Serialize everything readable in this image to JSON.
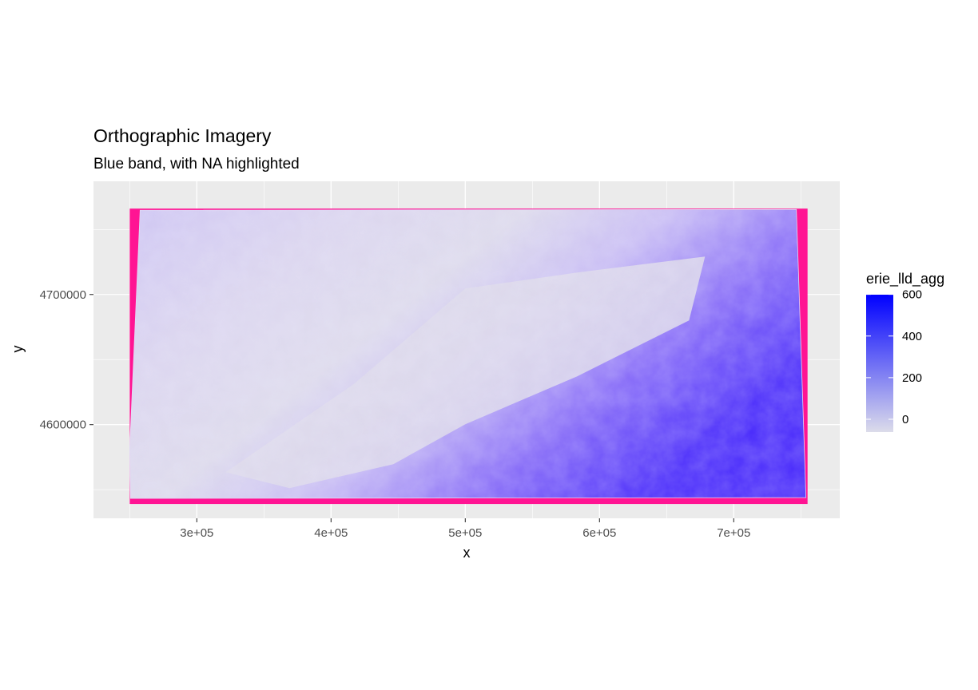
{
  "chart_data": {
    "type": "heatmap",
    "title": "Orthographic Imagery",
    "subtitle": "Blue band, with NA highlighted",
    "xlabel": "x",
    "ylabel": "y",
    "xlim": [
      223000,
      779000
    ],
    "ylim": [
      4528000,
      4787000
    ],
    "x_ticks": [
      {
        "value": 300000,
        "label": "3e+05"
      },
      {
        "value": 400000,
        "label": "4e+05"
      },
      {
        "value": 500000,
        "label": "5e+05"
      },
      {
        "value": 600000,
        "label": "6e+05"
      },
      {
        "value": 700000,
        "label": "7e+05"
      }
    ],
    "y_ticks": [
      {
        "value": 4600000,
        "label": "4600000"
      },
      {
        "value": 4700000,
        "label": "4700000"
      }
    ],
    "raster_extent": {
      "xmin": 250000,
      "xmax": 755000,
      "ymin": 4539000,
      "ymax": 4766000
    },
    "na_color": "#ff1493",
    "fill_scale": {
      "name": "erie_lld_agg",
      "low": 0,
      "high": 600,
      "low_color": "#dcdcea",
      "high_color": "#0000ff",
      "breaks": [
        {
          "value": 0,
          "label": "0"
        },
        {
          "value": 200,
          "label": "200"
        },
        {
          "value": 400,
          "label": "400"
        },
        {
          "value": 600,
          "label": "600"
        }
      ]
    },
    "grid": true,
    "legend_position": "right"
  }
}
